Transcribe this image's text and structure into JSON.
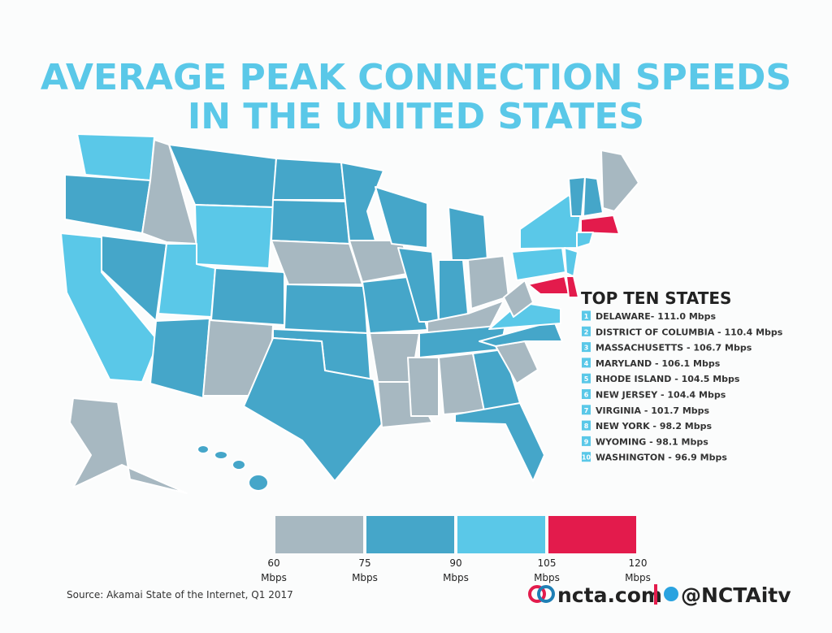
{
  "title": [
    "AVERAGE PEAK CONNECTION SPEEDS",
    "IN THE UNITED STATES"
  ],
  "top_ten": {
    "heading": "TOP TEN STATES",
    "items": [
      {
        "rank": 1,
        "label": "DELAWARE- 111.0 Mbps"
      },
      {
        "rank": 2,
        "label": "DISTRICT OF COLUMBIA - 110.4 Mbps"
      },
      {
        "rank": 3,
        "label": "MASSACHUSETTS - 106.7 Mbps"
      },
      {
        "rank": 4,
        "label": "MARYLAND - 106.1 Mbps"
      },
      {
        "rank": 5,
        "label": "RHODE ISLAND - 104.5 Mbps"
      },
      {
        "rank": 6,
        "label": "NEW JERSEY - 104.4 Mbps"
      },
      {
        "rank": 7,
        "label": "VIRGINIA - 101.7 Mbps"
      },
      {
        "rank": 8,
        "label": "NEW YORK - 98.2 Mbps"
      },
      {
        "rank": 9,
        "label": "WYOMING - 98.1 Mbps"
      },
      {
        "rank": 10,
        "label": "WASHINGTON - 96.9 Mbps"
      }
    ]
  },
  "legend": {
    "bins": [
      60,
      75,
      90,
      105,
      120
    ],
    "unit": "Mbps",
    "colors": [
      "#a7b8c1",
      "#45a6c9",
      "#5ac8e8",
      "#e31b4c"
    ]
  },
  "source": "Source: Akamai State of the Internet, Q1 2017",
  "branding": {
    "site": "ncta.com",
    "handle": "@NCTAitv"
  }
}
